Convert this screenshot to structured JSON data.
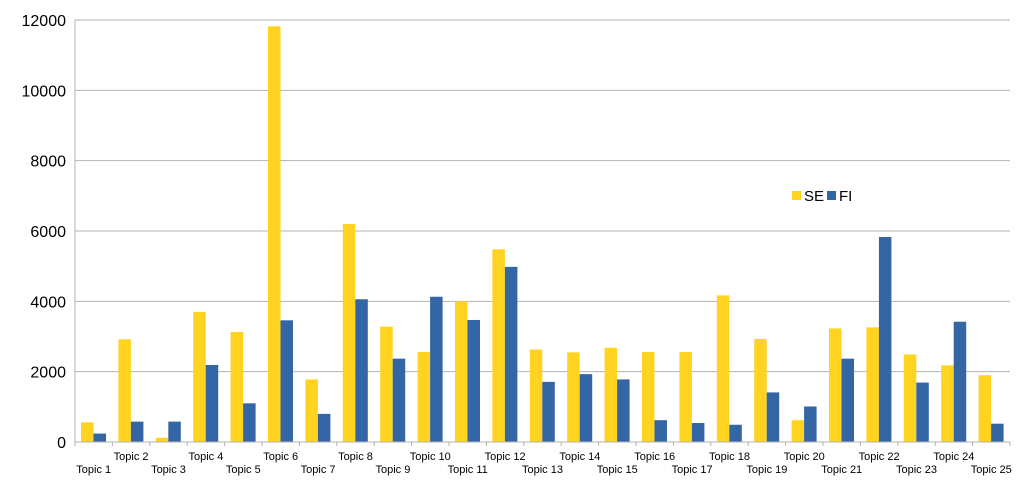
{
  "chart_data": {
    "type": "bar",
    "categories": [
      "Topic 1",
      "Topic 2",
      "Topic 3",
      "Topic 4",
      "Topic 5",
      "Topic 6",
      "Topic 7",
      "Topic 8",
      "Topic 9",
      "Topic 10",
      "Topic 11",
      "Topic 12",
      "Topic 13",
      "Topic 14",
      "Topic 15",
      "Topic 16",
      "Topic 17",
      "Topic 18",
      "Topic 19",
      "Topic 20",
      "Topic 21",
      "Topic 22",
      "Topic 23",
      "Topic 24",
      "Topic 25"
    ],
    "series": [
      {
        "name": "SE",
        "color": "#ffd320",
        "values": [
          560,
          2920,
          120,
          3700,
          3130,
          11820,
          1780,
          6200,
          3280,
          2560,
          4000,
          5480,
          2630,
          2550,
          2680,
          2560,
          2560,
          4170,
          2930,
          620,
          3230,
          3260,
          2490,
          2180,
          1900
        ]
      },
      {
        "name": "FI",
        "color": "#3465a4",
        "values": [
          240,
          580,
          580,
          2190,
          1100,
          3460,
          800,
          4060,
          2370,
          4130,
          3470,
          4980,
          1710,
          1930,
          1780,
          620,
          540,
          490,
          1410,
          1010,
          2370,
          5830,
          1690,
          3420,
          520
        ]
      }
    ],
    "yticks": [
      "0",
      "2000",
      "4000",
      "6000",
      "8000",
      "10000",
      "12000"
    ],
    "ylim": [
      0,
      12000
    ],
    "grid": true,
    "legend_position": "right"
  }
}
